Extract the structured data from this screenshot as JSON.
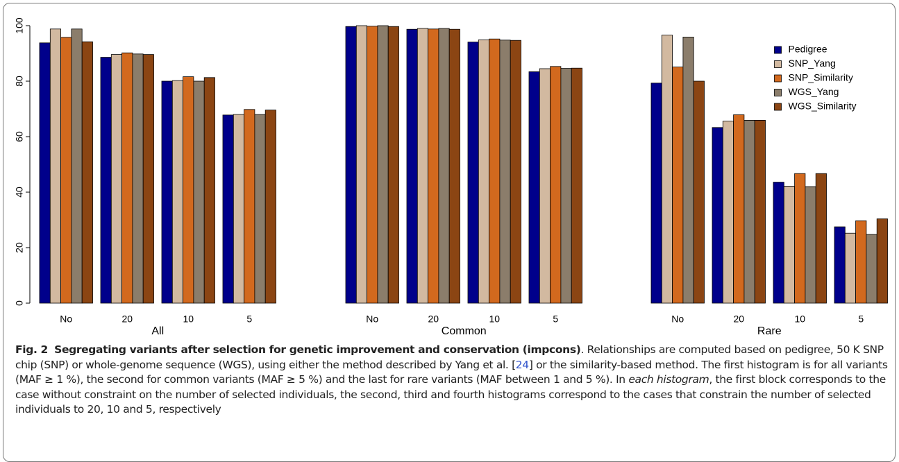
{
  "chart_data": [
    {
      "type": "bar",
      "xlabel": "All",
      "categories": [
        "No",
        "20",
        "10",
        "5"
      ],
      "ylim": [
        0,
        100
      ],
      "yticks": [
        0,
        20,
        40,
        60,
        80,
        100
      ],
      "series": [
        {
          "color": "#00008b",
          "values": [
            93.8,
            88.6,
            80.0,
            67.8
          ]
        },
        {
          "color": "#d2b9a0",
          "values": [
            98.8,
            89.6,
            80.2,
            68.0
          ]
        },
        {
          "color": "#d2691e",
          "values": [
            95.8,
            90.2,
            81.6,
            69.8
          ]
        },
        {
          "color": "#8b7d6b",
          "values": [
            98.8,
            89.8,
            80.0,
            68.0
          ]
        },
        {
          "color": "#8b4513",
          "values": [
            94.2,
            89.6,
            81.3,
            69.6
          ]
        }
      ]
    },
    {
      "type": "bar",
      "xlabel": "Common",
      "categories": [
        "No",
        "20",
        "10",
        "5"
      ],
      "ylim": [
        0,
        100
      ],
      "series": [
        {
          "color": "#00008b",
          "values": [
            99.7,
            98.7,
            94.1,
            83.4
          ]
        },
        {
          "color": "#d2b9a0",
          "values": [
            100,
            99.0,
            94.9,
            84.5
          ]
        },
        {
          "color": "#d2691e",
          "values": [
            99.8,
            98.8,
            95.2,
            85.3
          ]
        },
        {
          "color": "#8b7d6b",
          "values": [
            100,
            99.0,
            94.8,
            84.6
          ]
        },
        {
          "color": "#8b4513",
          "values": [
            99.7,
            98.7,
            94.7,
            84.7
          ]
        }
      ]
    },
    {
      "type": "bar",
      "xlabel": "Rare",
      "categories": [
        "No",
        "20",
        "10",
        "5"
      ],
      "ylim": [
        0,
        100
      ],
      "legend": "upper right",
      "series": [
        {
          "name": "Pedigree",
          "color": "#00008b",
          "values": [
            79.3,
            63.3,
            43.6,
            27.5
          ]
        },
        {
          "name": "SNP_Yang",
          "color": "#d2b9a0",
          "values": [
            96.6,
            65.6,
            42.1,
            25.2
          ]
        },
        {
          "name": "SNP_Similarity",
          "color": "#d2691e",
          "values": [
            85.1,
            67.9,
            46.7,
            29.7
          ]
        },
        {
          "name": "WGS_Yang",
          "color": "#8b7d6b",
          "values": [
            95.9,
            65.9,
            42.0,
            24.8
          ]
        },
        {
          "name": "WGS_Similarity",
          "color": "#8b4513",
          "values": [
            80.0,
            65.9,
            46.7,
            30.4
          ]
        }
      ]
    }
  ],
  "caption": {
    "label": "Fig. 2",
    "title": "Segregating variants after selection for genetic improvement and conservation (impcons)",
    "text": [
      ". Relationships are computed based on pedigree, 50 K SNP chip (SNP) or whole-genome sequence (WGS), using either the method described by Yang et al. [",
      "24",
      "] or the similarity-based method. The first histogram is for all variants (MAF ≥ 1 %), the second for common variants (MAF ≥ 5 %) and the last for rare variants (MAF between 1 and 5 %). In ",
      "each histogram",
      ", the first block corresponds to the case without constraint on the number of selected individuals, the second, third and fourth histograms correspond to the cases that constrain the number of selected individuals to 20, 10 and 5, respectively"
    ]
  }
}
